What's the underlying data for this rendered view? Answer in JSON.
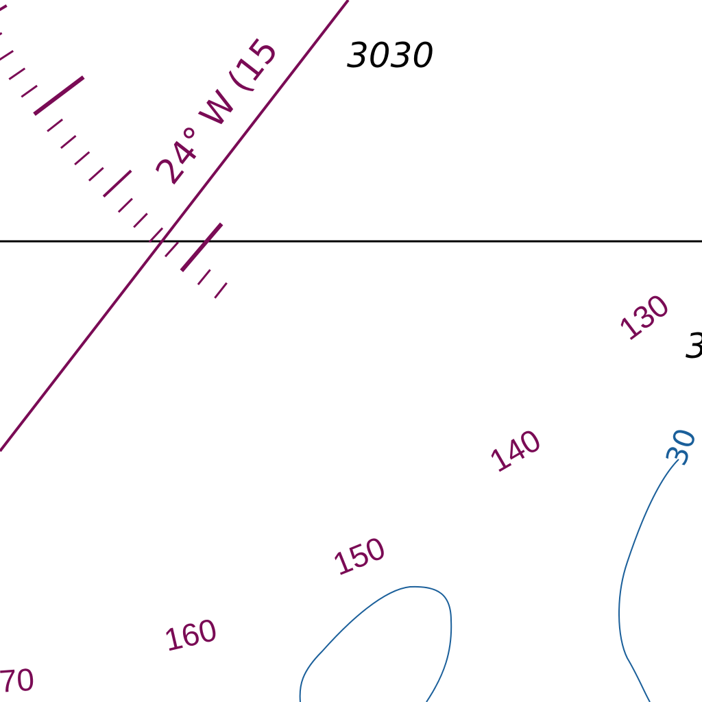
{
  "map": {
    "colors": {
      "compass": "#7a0b55",
      "depth_contour": "#1a5f9a",
      "soundings": "#000000",
      "latitude_line": "#000000"
    },
    "variation_label": "24° W (15",
    "soundings": [
      {
        "value": "3030"
      },
      {
        "value": "3"
      }
    ],
    "contour_label": "30",
    "compass_rose": {
      "degree_labels": [
        {
          "value": "130"
        },
        {
          "value": "140"
        },
        {
          "value": "150"
        },
        {
          "value": "160"
        },
        {
          "value": "70"
        }
      ]
    }
  }
}
